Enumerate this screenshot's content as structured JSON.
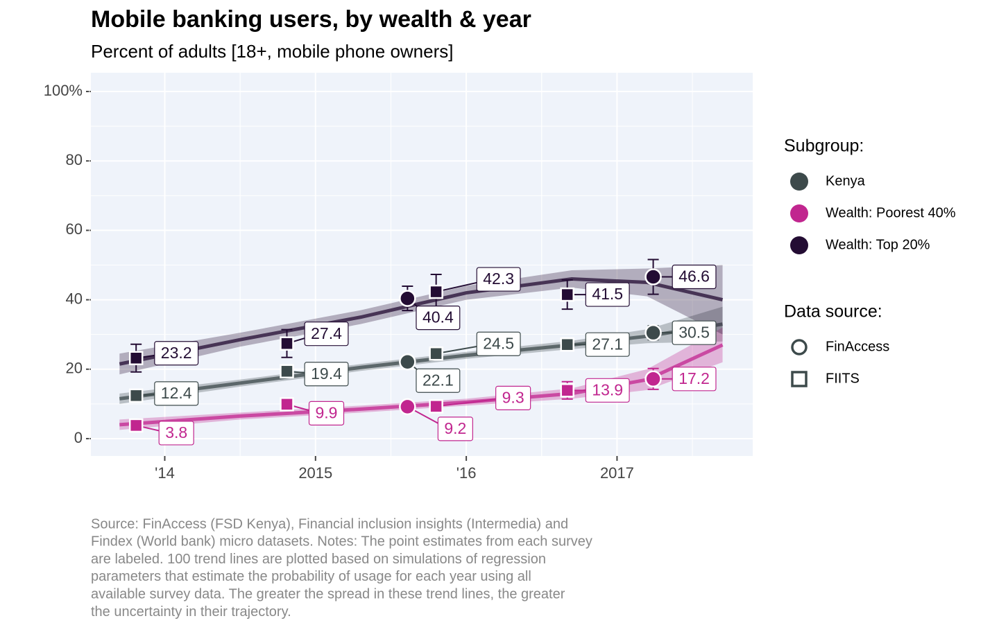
{
  "chart_data": {
    "type": "scatter",
    "title": "Mobile banking users, by wealth & year",
    "subtitle": "Percent of adults [18+, mobile phone owners]",
    "xlim": [
      2013.51,
      2017.9
    ],
    "ylim": [
      -5,
      105.4
    ],
    "xticks": [
      {
        "value": 2014,
        "label": "'14"
      },
      2015,
      {
        "value": 2016,
        "label": "'16"
      },
      2017
    ],
    "yticks": [
      0,
      20,
      40,
      60,
      80,
      {
        "value": 100,
        "label": "100%"
      }
    ],
    "grid": true,
    "legend_titles": [
      "Subgroup:",
      "Data source:"
    ],
    "sources": [
      {
        "name": "FinAccess",
        "shape": "circle"
      },
      {
        "name": "FIITS",
        "shape": "square"
      }
    ],
    "groups": [
      {
        "name": "Kenya",
        "color": "#3d4a4b",
        "trend": {
          "x": [
            2013.7,
            2014.5,
            2015.3,
            2016.0,
            2016.7,
            2017.2,
            2017.7
          ],
          "values": [
            11.5,
            16,
            20.5,
            24,
            27,
            29.5,
            33
          ],
          "spread": [
            1.5,
            1,
            1,
            1,
            1.2,
            2,
            5
          ]
        },
        "data": [
          {
            "x": [
              2015.61,
              2017.24
            ],
            "values": [
              22.1,
              30.5
            ],
            "errors": [
              1,
              2
            ]
          },
          {
            "x": [
              2013.81,
              2014.81,
              2015.8,
              2016.67
            ],
            "values": [
              12.4,
              19.4,
              24.5,
              27.1
            ],
            "errors": [
              1,
              1,
              1,
              1
            ]
          }
        ]
      },
      {
        "name": "Wealth: Poorest 40%",
        "color": "#c1268f",
        "trend": {
          "x": [
            2013.7,
            2014.5,
            2015.3,
            2016.0,
            2016.7,
            2017.2,
            2017.7
          ],
          "values": [
            4,
            6.5,
            8.5,
            10.5,
            13,
            17,
            27
          ],
          "spread": [
            1.5,
            1,
            1,
            1,
            1.5,
            3,
            5
          ]
        },
        "data": [
          {
            "x": [
              2015.61,
              2017.24
            ],
            "values": [
              9.2,
              17.2
            ],
            "errors": [
              1,
              3
            ]
          },
          {
            "x": [
              2013.81,
              2014.81,
              2015.8,
              2016.67
            ],
            "values": [
              3.8,
              9.9,
              9.3,
              13.9
            ],
            "errors": [
              1,
              1,
              1,
              2.5
            ]
          }
        ]
      },
      {
        "name": "Wealth: Top 20%",
        "color": "#230c33",
        "trend": {
          "x": [
            2013.7,
            2014.5,
            2015.3,
            2016.0,
            2016.7,
            2017.2,
            2017.7
          ],
          "values": [
            21.5,
            28.5,
            35,
            42,
            46,
            45,
            40
          ],
          "spread": [
            3,
            2,
            2,
            2,
            2.5,
            4,
            10
          ]
        },
        "data": [
          {
            "x": [
              2015.61,
              2017.24
            ],
            "values": [
              40.4,
              46.6
            ],
            "errors": [
              3.5,
              5
            ]
          },
          {
            "x": [
              2013.81,
              2014.81,
              2015.8,
              2016.67
            ],
            "values": [
              23.2,
              27.4,
              42.3,
              41.5
            ],
            "errors": [
              4,
              4,
              5,
              4.2
            ]
          }
        ]
      }
    ],
    "caption": [
      "Source: FinAccess (FSD Kenya), Financial inclusion insights (Intermedia) and",
      "Findex (World bank) micro datasets. Notes: The point estimates from each survey",
      "are labeled. 100 trend lines are plotted based on simulations of regression",
      "parameters that estimate the probability of usage for each year using all",
      "available survey data. The greater the spread in these trend lines, the greater",
      "the uncertainty in their trajectory."
    ]
  }
}
